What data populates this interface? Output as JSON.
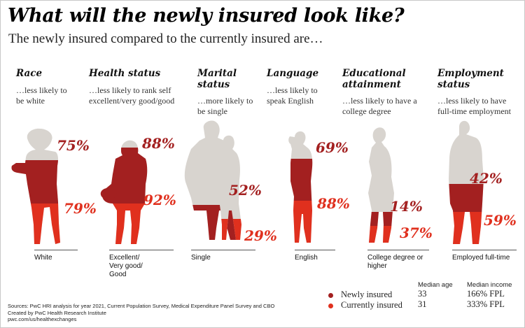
{
  "title": "What will the newly insured look like?",
  "subtitle": "The newly insured compared to the currently insured are…",
  "colors": {
    "newly": "#a32020",
    "currently": "#e0301e",
    "gray": "#d8d4cf"
  },
  "chart_data": {
    "type": "bar",
    "title": "What will the newly insured look like?",
    "subtitle": "The newly insured compared to the currently insured are…",
    "series": [
      {
        "name": "Newly insured",
        "values": [
          75,
          88,
          52,
          69,
          14,
          42
        ]
      },
      {
        "name": "Currently insured",
        "values": [
          79,
          92,
          29,
          88,
          37,
          59
        ]
      }
    ],
    "categories": [
      "White",
      "Excellent/ Very good/ Good",
      "Single",
      "English",
      "College degree or higher",
      "Employed full-time"
    ],
    "ylim": [
      0,
      100
    ],
    "columns": [
      {
        "heading": "Race",
        "desc": "…less likely to be white",
        "category": "White",
        "newly": 75,
        "newly_label": "75%",
        "currently": 79,
        "currently_label": "79%"
      },
      {
        "heading": "Health status",
        "desc": "…less likely to rank self excellent/very good/good",
        "category": "Excellent/ Very good/ Good",
        "newly": 88,
        "newly_label": "88%",
        "currently": 92,
        "currently_label": "92%"
      },
      {
        "heading": "Marital status",
        "desc": "…more likely to be single",
        "category": "Single",
        "newly": 52,
        "newly_label": "52%",
        "currently": 29,
        "currently_label": "29%"
      },
      {
        "heading": "Language",
        "desc": "…less likely to speak English",
        "category": "English",
        "newly": 69,
        "newly_label": "69%",
        "currently": 88,
        "currently_label": "88%"
      },
      {
        "heading": "Educational attainment",
        "desc": "…less likely to have a college degree",
        "category": "College degree or higher",
        "newly": 14,
        "newly_label": "14%",
        "currently": 37,
        "currently_label": "37%"
      },
      {
        "heading": "Employment status",
        "desc": "…less likely to have full-time employment",
        "category": "Employed full-time",
        "newly": 42,
        "newly_label": "42%",
        "currently": 59,
        "currently_label": "59%"
      }
    ]
  },
  "legend": {
    "header_age": "Median age",
    "header_income": "Median income",
    "rows": [
      {
        "name": "Newly insured",
        "age": "33",
        "income": "166% FPL"
      },
      {
        "name": "Currently insured",
        "age": "31",
        "income": "333% FPL"
      }
    ]
  },
  "sources": [
    "Sources: PwC HRI analysis for year 2021, Current Population Survey, Medical Expenditure Panel Survey and CBO",
    "Created by PwC Health Research Institute",
    "pwc.com/us/healthexchanges"
  ]
}
